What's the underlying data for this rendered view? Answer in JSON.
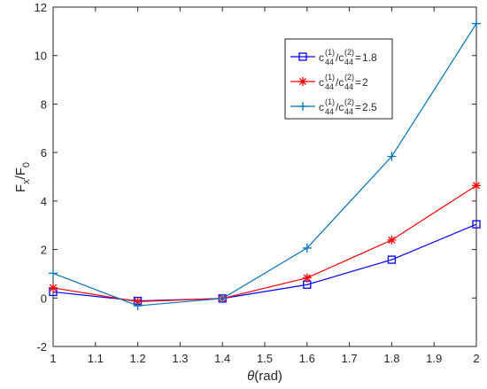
{
  "chart_data": {
    "type": "line",
    "xlabel_symbol": "θ",
    "xlabel_unit": "(rad)",
    "ylabel_main": "F",
    "ylabel_main_sub": "x",
    "ylabel_slash": "/F",
    "ylabel_den_sub": "0",
    "xlim": [
      1,
      2
    ],
    "ylim": [
      -2,
      12
    ],
    "xticks": [
      "1",
      "1.1",
      "1.2",
      "1.3",
      "1.4",
      "1.5",
      "1.6",
      "1.7",
      "1.8",
      "1.9",
      "2"
    ],
    "yticks": [
      "-2",
      "0",
      "2",
      "4",
      "6",
      "8",
      "10",
      "12"
    ],
    "grid": false,
    "legend_position": "top-right",
    "x": [
      1.0,
      1.2,
      1.4,
      1.6,
      1.8,
      2.0
    ],
    "series": [
      {
        "ratio_value": "1.8",
        "color": "#0000ff",
        "marker": "square",
        "values": [
          0.25,
          -0.12,
          -0.02,
          0.55,
          1.58,
          3.04
        ]
      },
      {
        "ratio_value": "2",
        "color": "#ff0000",
        "marker": "asterisk",
        "values": [
          0.42,
          -0.15,
          -0.02,
          0.83,
          2.39,
          4.64
        ]
      },
      {
        "ratio_value": "2.5",
        "color": "#0072bd",
        "marker": "plus",
        "values": [
          1.02,
          -0.32,
          -0.02,
          2.06,
          5.84,
          11.32
        ]
      }
    ],
    "legend_prefix_c": "c",
    "legend_sup_1": "(1)",
    "legend_sub_44": "44",
    "legend_slash_c": "/c",
    "legend_sup_2": "(2)",
    "legend_equals": "="
  }
}
